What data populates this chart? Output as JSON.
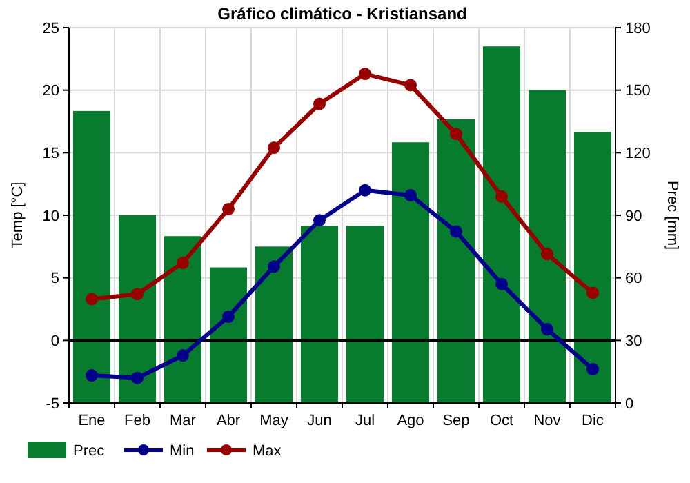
{
  "chart_data": {
    "type": "bar",
    "title": "Gráfico climático - Kristiansand",
    "ylabel": "Temp [°C]",
    "y2label": "Prec [mm]",
    "categories": [
      "Ene",
      "Feb",
      "Mar",
      "Abr",
      "May",
      "Jun",
      "Jul",
      "Ago",
      "Sep",
      "Oct",
      "Nov",
      "Dic"
    ],
    "series": [
      {
        "name": "Prec",
        "axis": "y2",
        "color": "#077c2f",
        "values": [
          140,
          90,
          80,
          65,
          75,
          85,
          85,
          125,
          136,
          171,
          150,
          130
        ]
      },
      {
        "name": "Min",
        "type": "line",
        "color": "#00008b",
        "values": [
          -2.8,
          -3,
          -1.2,
          1.9,
          5.9,
          9.6,
          12,
          11.6,
          8.7,
          4.5,
          0.9,
          -2.3
        ]
      },
      {
        "name": "Max",
        "type": "line",
        "color": "#990000",
        "values": [
          3.3,
          3.7,
          6.2,
          10.5,
          15.4,
          18.9,
          21.3,
          20.4,
          16.5,
          11.5,
          6.9,
          3.8
        ]
      }
    ],
    "ylim": [
      -5,
      25
    ],
    "yticks": [
      -5,
      0,
      5,
      10,
      15,
      20,
      25
    ],
    "y2lim": [
      0,
      180
    ],
    "y2ticks": [
      0,
      30,
      60,
      90,
      120,
      150,
      180
    ],
    "ref_lines": [
      {
        "axis": "y",
        "value": 0,
        "color": "#000000"
      }
    ],
    "grid": true,
    "legend": "bottom",
    "marker": "circle"
  }
}
